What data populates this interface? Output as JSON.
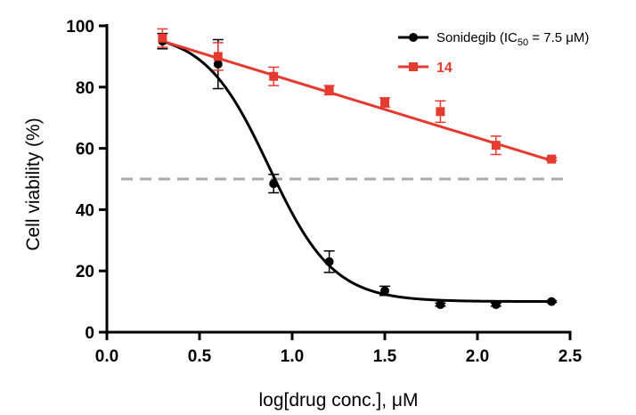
{
  "chart_data": {
    "type": "scatter",
    "xlabel": "log[drug conc.], μM",
    "ylabel": "Cell viability (%)",
    "xlim": [
      0.0,
      2.5
    ],
    "ylim": [
      0,
      100
    ],
    "x_ticks": [
      "0.0",
      "0.5",
      "1.0",
      "1.5",
      "2.0",
      "2.5"
    ],
    "y_ticks": [
      "0",
      "20",
      "40",
      "60",
      "80",
      "100"
    ],
    "threshold_line": {
      "y": 50,
      "style": "dashed",
      "color": "#aaaaaa"
    },
    "legend_position": "top-right",
    "series": [
      {
        "name_prefix": "Sonidegib (IC",
        "name_subscript": "50",
        "name_suffix": " = 7.5 μM)",
        "color": "#000000",
        "marker": "circle",
        "fit": "sigmoidal",
        "points": [
          {
            "x": 0.3,
            "y": 95,
            "err": 2.5
          },
          {
            "x": 0.6,
            "y": 87.5,
            "err": 8
          },
          {
            "x": 0.9,
            "y": 48.5,
            "err": 3
          },
          {
            "x": 1.2,
            "y": 23,
            "err": 3.5
          },
          {
            "x": 1.5,
            "y": 13.5,
            "err": 1.5
          },
          {
            "x": 1.8,
            "y": 9,
            "err": 0.5
          },
          {
            "x": 2.1,
            "y": 9,
            "err": 0.5
          },
          {
            "x": 2.4,
            "y": 10,
            "err": 0.3
          }
        ],
        "curve": {
          "bottom": 10,
          "top": 98,
          "logIC50": 0.875,
          "hill": 2.5
        }
      },
      {
        "name": "14",
        "color": "#e53a2f",
        "marker": "square",
        "fit": "linear",
        "points": [
          {
            "x": 0.3,
            "y": 96,
            "err": 3
          },
          {
            "x": 0.6,
            "y": 90,
            "err": 4.5
          },
          {
            "x": 0.9,
            "y": 83.5,
            "err": 3
          },
          {
            "x": 1.2,
            "y": 79,
            "err": 1.5
          },
          {
            "x": 1.5,
            "y": 75,
            "err": 1.5
          },
          {
            "x": 1.8,
            "y": 72,
            "err": 3.5
          },
          {
            "x": 2.1,
            "y": 61,
            "err": 3
          },
          {
            "x": 2.4,
            "y": 56.5,
            "err": 0.5
          }
        ],
        "curve": {
          "x0": 0.3,
          "y0": 95,
          "x1": 2.4,
          "y1": 56
        }
      }
    ]
  }
}
